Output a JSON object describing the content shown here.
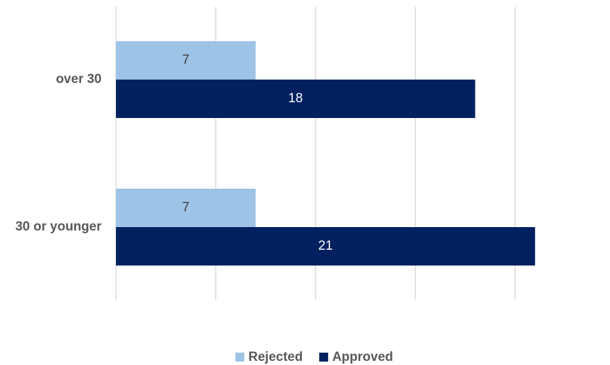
{
  "chart_data": {
    "type": "bar",
    "orientation": "horizontal",
    "categories": [
      "over 30",
      "30 or younger"
    ],
    "series": [
      {
        "name": "Rejected",
        "color": "#9dc3e6",
        "values": [
          7,
          7
        ]
      },
      {
        "name": "Approved",
        "color": "#002060",
        "values": [
          18,
          21
        ]
      }
    ],
    "xlim": [
      0,
      24
    ],
    "xticks": [
      0,
      5,
      10,
      15,
      20
    ],
    "grid": true,
    "legend": "bottom"
  }
}
